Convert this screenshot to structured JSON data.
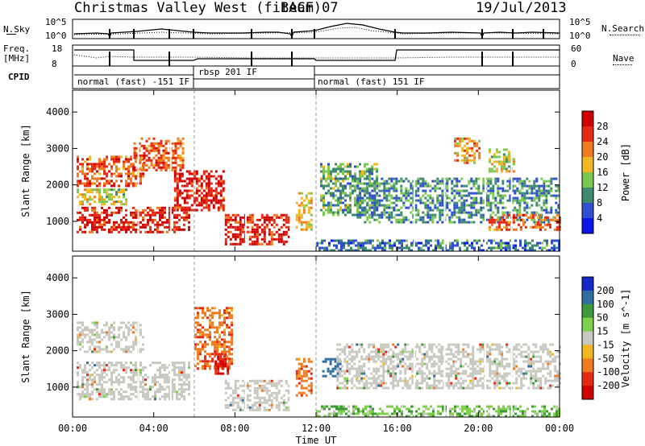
{
  "header": {
    "site": "Christmas Valley West (fitACF)",
    "beam": "Beam 07",
    "date": "19/Jul/2013"
  },
  "top_panels": {
    "nsky_label": "N.Sky",
    "nsky_ticks": [
      "10^5",
      "10^0"
    ],
    "nsearch_label": "N.Search",
    "nsearch_ticks": [
      "10^5",
      "10^0"
    ],
    "freq_label_1": "Freq.",
    "freq_label_2": "[MHz]",
    "freq_ticks": [
      "18",
      "8"
    ],
    "nave_label": "Nave",
    "nave_ticks": [
      "60",
      "0"
    ],
    "cpid_label": "CPID",
    "cpid_segments": [
      "normal (fast) -151 IF",
      "rbsp 201 IF",
      "normal (fast) 151 IF"
    ]
  },
  "chart_data": [
    {
      "type": "heatmap",
      "title": "Power",
      "ylabel": "Slant Range [km]",
      "xlabel": "Time UT",
      "x_ticks": [
        "00:00",
        "04:00",
        "08:00",
        "12:00",
        "16:00",
        "20:00",
        "00:00"
      ],
      "y_ticks": [
        1000,
        2000,
        3000,
        4000
      ],
      "ylim": [
        180,
        4600
      ],
      "colorbar": {
        "label": "Power [dB]",
        "ticks": [
          4,
          8,
          12,
          16,
          20,
          24,
          28
        ],
        "colors": [
          "#0a14e6",
          "#2f4fd0",
          "#3d8a6e",
          "#7ec850",
          "#f0b81e",
          "#f07a1e",
          "#e62a12",
          "#d00000"
        ]
      },
      "series": [
        {
          "time_h": [
            0.2,
            3.5
          ],
          "range_km": [
            2000,
            2800
          ],
          "power_db": 24
        },
        {
          "time_h": [
            0.2,
            2.6
          ],
          "range_km": [
            1500,
            1900
          ],
          "power_db": 16
        },
        {
          "time_h": [
            0.2,
            5.8
          ],
          "range_km": [
            700,
            1400
          ],
          "power_db": 28
        },
        {
          "time_h": [
            3.0,
            5.5
          ],
          "range_km": [
            2400,
            3300
          ],
          "power_db": 24
        },
        {
          "time_h": [
            5.0,
            7.5
          ],
          "range_km": [
            1300,
            2400
          ],
          "power_db": 28
        },
        {
          "time_h": [
            7.5,
            10.6
          ],
          "range_km": [
            400,
            1200
          ],
          "power_db": 28
        },
        {
          "time_h": [
            11.0,
            11.8
          ],
          "range_km": [
            800,
            1800
          ],
          "power_db": 18
        },
        {
          "time_h": [
            12.2,
            15.0
          ],
          "range_km": [
            1200,
            2600
          ],
          "power_db": 12
        },
        {
          "time_h": [
            14.0,
            24.0
          ],
          "range_km": [
            1000,
            2200
          ],
          "power_db": 10
        },
        {
          "time_h": [
            20.5,
            24.0
          ],
          "range_km": [
            800,
            1200
          ],
          "power_db": 24
        },
        {
          "time_h": [
            18.8,
            20.0
          ],
          "range_km": [
            2600,
            3300
          ],
          "power_db": 20
        },
        {
          "time_h": [
            20.5,
            21.8
          ],
          "range_km": [
            2400,
            3000
          ],
          "power_db": 16
        },
        {
          "time_h": [
            12.0,
            24.0
          ],
          "range_km": [
            200,
            500
          ],
          "power_db": 8
        }
      ]
    },
    {
      "type": "heatmap",
      "title": "Velocity",
      "ylabel": "Slant Range [km]",
      "xlabel": "Time UT",
      "x_ticks": [
        "00:00",
        "04:00",
        "08:00",
        "12:00",
        "16:00",
        "20:00",
        "00:00"
      ],
      "y_ticks": [
        1000,
        2000,
        3000,
        4000
      ],
      "ylim": [
        180,
        4600
      ],
      "colorbar": {
        "label": "Velocity [m s^-1]",
        "ticks": [
          200,
          100,
          50,
          15,
          -15,
          -50,
          -100,
          -200
        ],
        "colors": [
          "#1428c8",
          "#2f6fa0",
          "#3c9a3c",
          "#7ed04a",
          "#c8c8c0",
          "#f0b81e",
          "#f07a1e",
          "#e62a12",
          "#d00000"
        ]
      },
      "series": [
        {
          "time_h": [
            0.2,
            3.5
          ],
          "range_km": [
            2000,
            2800
          ],
          "velocity": 0
        },
        {
          "time_h": [
            0.2,
            5.8
          ],
          "range_km": [
            700,
            1700
          ],
          "velocity": 0
        },
        {
          "time_h": [
            6.0,
            7.8
          ],
          "range_km": [
            1500,
            3200
          ],
          "velocity": -80
        },
        {
          "time_h": [
            7.0,
            7.6
          ],
          "range_km": [
            1300,
            2000
          ],
          "velocity": -200
        },
        {
          "time_h": [
            7.5,
            10.6
          ],
          "range_km": [
            400,
            1200
          ],
          "velocity": 0
        },
        {
          "time_h": [
            11.0,
            11.8
          ],
          "range_km": [
            800,
            1800
          ],
          "velocity": -80
        },
        {
          "time_h": [
            12.3,
            13.2
          ],
          "range_km": [
            1300,
            1800
          ],
          "velocity": 150
        },
        {
          "time_h": [
            13.0,
            24.0
          ],
          "range_km": [
            1000,
            2200
          ],
          "velocity": 0
        },
        {
          "time_h": [
            12.0,
            24.0
          ],
          "range_km": [
            200,
            500
          ],
          "velocity": 40
        }
      ]
    }
  ]
}
